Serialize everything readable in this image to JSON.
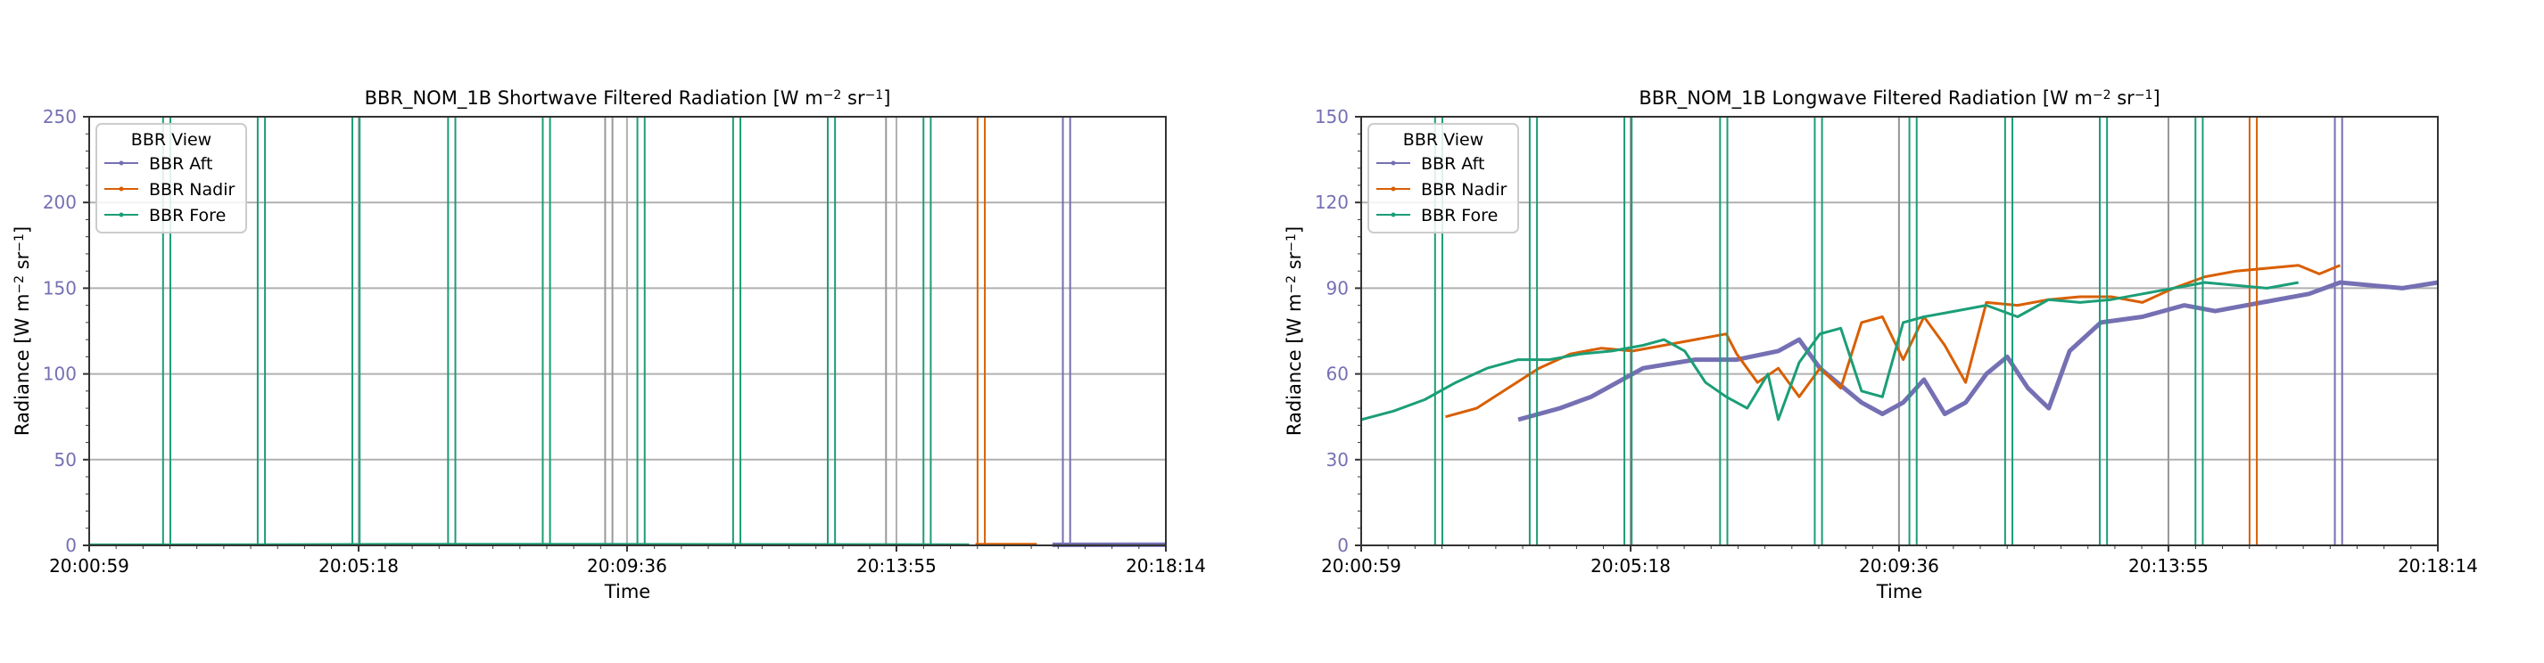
{
  "chart_data": [
    {
      "type": "line",
      "title_main": "BBR_NOM_1B Shortwave Filtered Radiation [W m",
      "title_sup1": "−2",
      "title_mid": " sr",
      "title_sup2": "−1",
      "title_end": "]",
      "xlabel": "Time",
      "ylabel_main": "Radiance [W m",
      "ylabel_sup1": "−2",
      "ylabel_mid": " sr",
      "ylabel_sup2": "−1",
      "ylabel_end": "]",
      "x_ticks": [
        "20:00:59",
        "20:05:18",
        "20:09:36",
        "20:13:55",
        "20:18:14"
      ],
      "xlim": [
        "20:00:59",
        "20:18:14"
      ],
      "ylim": [
        0,
        250
      ],
      "y_ticks": [
        0,
        50,
        100,
        150,
        200,
        250
      ],
      "grid": true,
      "legend": {
        "title": "BBR View",
        "placement": "top-left"
      },
      "series": [
        {
          "name": "BBR Aft",
          "color": "#7570b3",
          "segments": [
            [
              [
                "20:16:25",
                0.3
              ],
              [
                "20:18:14",
                0.4
              ]
            ]
          ],
          "spikes": [
            "20:16:35",
            "20:16:42"
          ]
        },
        {
          "name": "BBR Nadir",
          "color": "#d95f02",
          "segments": [
            [
              [
                "20:15:11",
                0.6
              ],
              [
                "20:16:10",
                0.7
              ]
            ]
          ],
          "spikes": [
            "20:15:13",
            "20:15:20"
          ]
        },
        {
          "name": "BBR Fore",
          "color": "#1b9e77",
          "segments": [
            [
              [
                "20:00:59",
                0.3
              ],
              [
                "20:03:30",
                0.4
              ],
              [
                "20:06:00",
                0.6
              ],
              [
                "20:09:00",
                0.6
              ],
              [
                "20:12:00",
                0.5
              ],
              [
                "20:15:05",
                0.4
              ]
            ]
          ],
          "spikes": [
            "20:02:10",
            "20:02:17",
            "20:03:41",
            "20:03:48",
            "20:05:12",
            "20:05:19",
            "20:06:44",
            "20:06:51",
            "20:08:15",
            "20:08:22",
            "20:09:46",
            "20:09:53",
            "20:11:18",
            "20:11:25",
            "20:12:49",
            "20:12:56",
            "20:14:21",
            "20:14:28"
          ]
        }
      ],
      "reference_lines": [
        {
          "color": "#999999",
          "x": [
            "20:09:15",
            "20:09:22",
            "20:13:45"
          ]
        }
      ]
    },
    {
      "type": "line",
      "title_main": "BBR_NOM_1B Longwave Filtered Radiation [W m",
      "title_sup1": "−2",
      "title_mid": " sr",
      "title_sup2": "−1",
      "title_end": "]",
      "xlabel": "Time",
      "ylabel_main": "Radiance [W m",
      "ylabel_sup1": "−2",
      "ylabel_mid": " sr",
      "ylabel_sup2": "−1",
      "ylabel_end": "]",
      "x_ticks": [
        "20:00:59",
        "20:05:18",
        "20:09:36",
        "20:13:55",
        "20:18:14"
      ],
      "xlim": [
        "20:00:59",
        "20:18:14"
      ],
      "ylim": [
        0,
        150
      ],
      "y_ticks": [
        0,
        30,
        60,
        90,
        120,
        150
      ],
      "grid": true,
      "legend": {
        "title": "BBR View",
        "placement": "top-left"
      },
      "series": [
        {
          "name": "BBR Aft",
          "color": "#7570b3",
          "segments": [
            [
              [
                "20:03:30",
                44
              ],
              [
                "20:04:10",
                48
              ],
              [
                "20:04:40",
                52
              ],
              [
                "20:05:30",
                62
              ],
              [
                "20:06:20",
                65
              ],
              [
                "20:07:00",
                65
              ],
              [
                "20:07:40",
                68
              ],
              [
                "20:08:00",
                72
              ],
              [
                "20:08:20",
                62
              ],
              [
                "20:08:40",
                56
              ],
              [
                "20:09:00",
                50
              ],
              [
                "20:09:20",
                46
              ],
              [
                "20:09:40",
                50
              ],
              [
                "20:10:00",
                58
              ],
              [
                "20:10:20",
                46
              ],
              [
                "20:10:40",
                50
              ],
              [
                "20:11:00",
                60
              ],
              [
                "20:11:20",
                66
              ],
              [
                "20:11:40",
                55
              ],
              [
                "20:12:00",
                48
              ],
              [
                "20:12:20",
                68
              ],
              [
                "20:12:50",
                78
              ],
              [
                "20:13:30",
                80
              ],
              [
                "20:14:10",
                84
              ],
              [
                "20:14:40",
                82
              ],
              [
                "20:15:10",
                84
              ],
              [
                "20:15:40",
                86
              ],
              [
                "20:16:10",
                88
              ],
              [
                "20:16:40",
                92
              ],
              [
                "20:17:10",
                91
              ],
              [
                "20:17:40",
                90
              ],
              [
                "20:18:14",
                92
              ]
            ]
          ],
          "spikes": [
            "20:16:35",
            "20:16:42"
          ]
        },
        {
          "name": "BBR Nadir",
          "color": "#d95f02",
          "segments": [
            [
              [
                "20:02:20",
                45
              ],
              [
                "20:02:50",
                48
              ],
              [
                "20:03:20",
                55
              ],
              [
                "20:03:50",
                62
              ],
              [
                "20:04:20",
                67
              ],
              [
                "20:04:50",
                69
              ],
              [
                "20:05:20",
                68
              ],
              [
                "20:05:50",
                70
              ],
              [
                "20:06:20",
                72
              ],
              [
                "20:06:50",
                74
              ],
              [
                "20:07:00",
                67
              ],
              [
                "20:07:20",
                57
              ],
              [
                "20:07:40",
                62
              ],
              [
                "20:08:00",
                52
              ],
              [
                "20:08:20",
                62
              ],
              [
                "20:08:40",
                55
              ],
              [
                "20:09:00",
                78
              ],
              [
                "20:09:20",
                80
              ],
              [
                "20:09:40",
                65
              ],
              [
                "20:10:00",
                80
              ],
              [
                "20:10:20",
                70
              ],
              [
                "20:10:40",
                57
              ],
              [
                "20:11:00",
                85
              ],
              [
                "20:11:30",
                84
              ],
              [
                "20:12:00",
                86
              ],
              [
                "20:12:30",
                87
              ],
              [
                "20:13:00",
                87
              ],
              [
                "20:13:30",
                85
              ],
              [
                "20:14:00",
                90
              ],
              [
                "20:14:30",
                94
              ],
              [
                "20:15:00",
                96
              ],
              [
                "20:15:30",
                97
              ],
              [
                "20:16:00",
                98
              ],
              [
                "20:16:20",
                95
              ],
              [
                "20:16:40",
                98
              ]
            ]
          ],
          "spikes": [
            "20:15:13",
            "20:15:20"
          ]
        },
        {
          "name": "BBR Fore",
          "color": "#1b9e77",
          "segments": [
            [
              [
                "20:00:59",
                44
              ],
              [
                "20:01:30",
                47
              ],
              [
                "20:02:00",
                51
              ],
              [
                "20:02:30",
                57
              ],
              [
                "20:03:00",
                62
              ],
              [
                "20:03:30",
                65
              ],
              [
                "20:04:00",
                65
              ],
              [
                "20:04:30",
                67
              ],
              [
                "20:05:00",
                68
              ],
              [
                "20:05:30",
                70
              ],
              [
                "20:05:50",
                72
              ],
              [
                "20:06:10",
                68
              ],
              [
                "20:06:30",
                57
              ],
              [
                "20:06:50",
                52
              ],
              [
                "20:07:10",
                48
              ],
              [
                "20:07:30",
                60
              ],
              [
                "20:07:40",
                44
              ],
              [
                "20:08:00",
                64
              ],
              [
                "20:08:20",
                74
              ],
              [
                "20:08:40",
                76
              ],
              [
                "20:09:00",
                54
              ],
              [
                "20:09:20",
                52
              ],
              [
                "20:09:40",
                78
              ],
              [
                "20:10:00",
                80
              ],
              [
                "20:10:30",
                82
              ],
              [
                "20:11:00",
                84
              ],
              [
                "20:11:30",
                80
              ],
              [
                "20:12:00",
                86
              ],
              [
                "20:12:30",
                85
              ],
              [
                "20:13:00",
                86
              ],
              [
                "20:13:30",
                88
              ],
              [
                "20:14:00",
                90
              ],
              [
                "20:14:30",
                92
              ],
              [
                "20:15:00",
                91
              ],
              [
                "20:15:30",
                90
              ],
              [
                "20:16:00",
                92
              ]
            ]
          ],
          "spikes": [
            "20:02:10",
            "20:02:17",
            "20:03:41",
            "20:03:48",
            "20:05:12",
            "20:05:19",
            "20:06:44",
            "20:06:51",
            "20:08:15",
            "20:08:22",
            "20:09:46",
            "20:09:53",
            "20:11:18",
            "20:11:25",
            "20:12:49",
            "20:12:56",
            "20:14:21",
            "20:14:28"
          ]
        }
      ],
      "reference_lines": [
        {
          "color": "#999999",
          "x": [
            "20:05:18",
            "20:09:36",
            "20:13:55"
          ]
        }
      ]
    }
  ]
}
